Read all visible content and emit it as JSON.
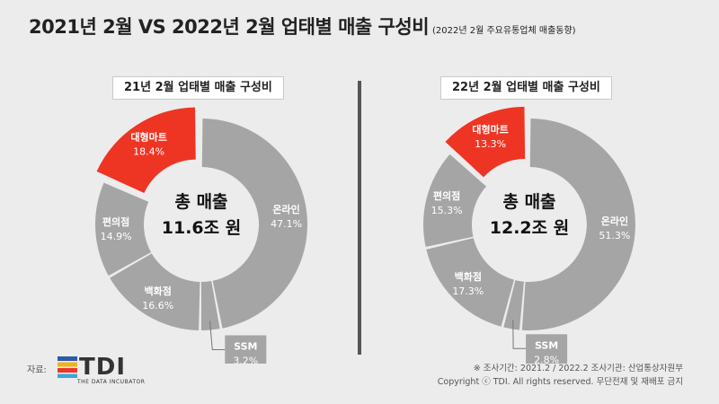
{
  "title": "2021년 2월 VS 2022년 2월 업태별 매출 구성비",
  "subtitle": "(2022년 2월 주요유통업체 매출동향)",
  "colors": {
    "highlight": "#ee3524",
    "gray": "#a5a5a5",
    "background": "#ececec"
  },
  "chart_data": [
    {
      "type": "pie",
      "title": "21년 2월 업태별 매출 구성비",
      "center_line1": "총 매출",
      "center_line2": "11.6조 원",
      "slices": [
        {
          "name": "온라인",
          "value": 47.1,
          "label": "47.1%",
          "color": "#a5a5a5"
        },
        {
          "name": "SSM",
          "value": 3.2,
          "label": "3.2%",
          "color": "#a5a5a5"
        },
        {
          "name": "백화점",
          "value": 16.6,
          "label": "16.6%",
          "color": "#a5a5a5"
        },
        {
          "name": "편의점",
          "value": 14.9,
          "label": "14.9%",
          "color": "#a5a5a5"
        },
        {
          "name": "대형마트",
          "value": 18.4,
          "label": "18.4%",
          "color": "#ee3524"
        }
      ]
    },
    {
      "type": "pie",
      "title": "22년 2월 업태별 매출 구성비",
      "center_line1": "총 매출",
      "center_line2": "12.2조 원",
      "slices": [
        {
          "name": "온라인",
          "value": 51.3,
          "label": "51.3%",
          "color": "#a5a5a5"
        },
        {
          "name": "SSM",
          "value": 2.8,
          "label": "2.8%",
          "color": "#a5a5a5"
        },
        {
          "name": "백화점",
          "value": 17.3,
          "label": "17.3%",
          "color": "#a5a5a5"
        },
        {
          "name": "편의점",
          "value": 15.3,
          "label": "15.3%",
          "color": "#a5a5a5"
        },
        {
          "name": "대형마트",
          "value": 13.3,
          "label": "13.3%",
          "color": "#ee3524"
        }
      ]
    }
  ],
  "footer": {
    "source_label": "자료:",
    "logo_text": "TDI",
    "logo_tagline": "THE DATA INCUBATOR",
    "note": "※ 조사기간: 2021.2 / 2022.2   조사기관: 산업통상자원부",
    "copyright": "Copyright ⓒ TDI. All rights reserved. 무단전재 및 재배포 금지"
  }
}
